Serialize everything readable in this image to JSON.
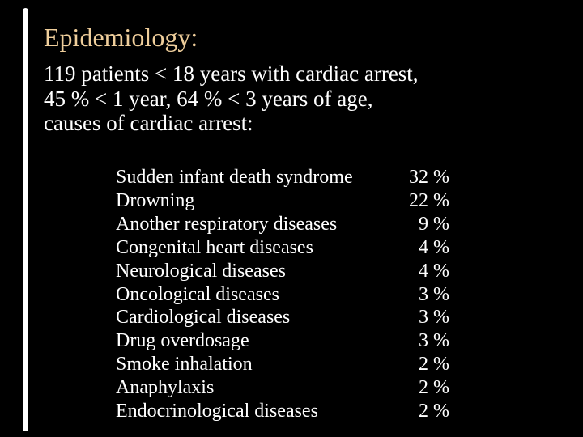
{
  "slide": {
    "title": "Epidemiology:",
    "intro_lines": [
      "119 patients < 18 years with cardiac arrest,",
      "45 % < 1 year, 64 % < 3 years of age,",
      "causes of cardiac arrest:"
    ],
    "causes": [
      {
        "label": "Sudden infant death syndrome",
        "value": "32 %"
      },
      {
        "label": "Drowning",
        "value": "22 %"
      },
      {
        "label": "Another respiratory diseases",
        "value": "9 %"
      },
      {
        "label": "Congenital heart diseases",
        "value": "4 %"
      },
      {
        "label": "Neurological diseases",
        "value": "4 %"
      },
      {
        "label": "Oncological diseases",
        "value": "3 %"
      },
      {
        "label": "Cardiological diseases",
        "value": "3 %"
      },
      {
        "label": "Drug overdosage",
        "value": "3 %"
      },
      {
        "label": "Smoke inhalation",
        "value": "2 %"
      },
      {
        "label": "Anaphylaxis",
        "value": "2 %"
      },
      {
        "label": "Endocrinological diseases",
        "value": "2 %"
      }
    ],
    "colors": {
      "background": "#000000",
      "title": "#efce9b",
      "body": "#ffffff",
      "scrollbar": "#ffffff"
    }
  }
}
